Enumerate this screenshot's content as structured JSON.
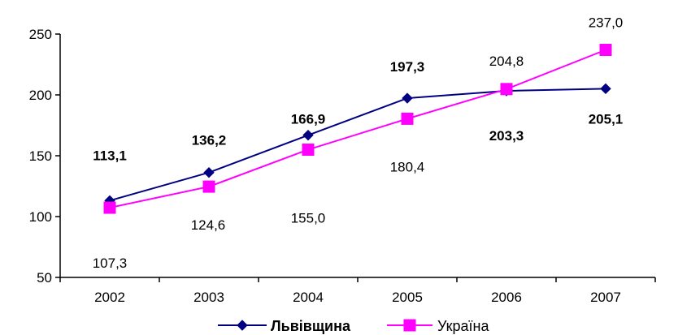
{
  "chart_data": {
    "type": "line",
    "categories": [
      "2002",
      "2003",
      "2004",
      "2005",
      "2006",
      "2007"
    ],
    "ylim": [
      50,
      250
    ],
    "yticks": [
      "50",
      "100",
      "150",
      "200",
      "250"
    ],
    "grid": false,
    "legend_position": "bottom",
    "series": [
      {
        "name": "Львівщина",
        "values": [
          113.1,
          136.2,
          166.9,
          197.3,
          203.3,
          205.1
        ],
        "labels": [
          "113,1",
          "136,2",
          "166,9",
          "197,3",
          "203,3",
          "205,1"
        ],
        "color": "#000080",
        "marker": "diamond",
        "label_bold": true
      },
      {
        "name": "Україна",
        "values": [
          107.3,
          124.6,
          155.0,
          180.4,
          204.8,
          237.0
        ],
        "labels": [
          "107,3",
          "124,6",
          "155,0",
          "180,4",
          "204,8",
          "237,0"
        ],
        "color": "#FF00FF",
        "marker": "square",
        "label_bold": false
      }
    ]
  }
}
